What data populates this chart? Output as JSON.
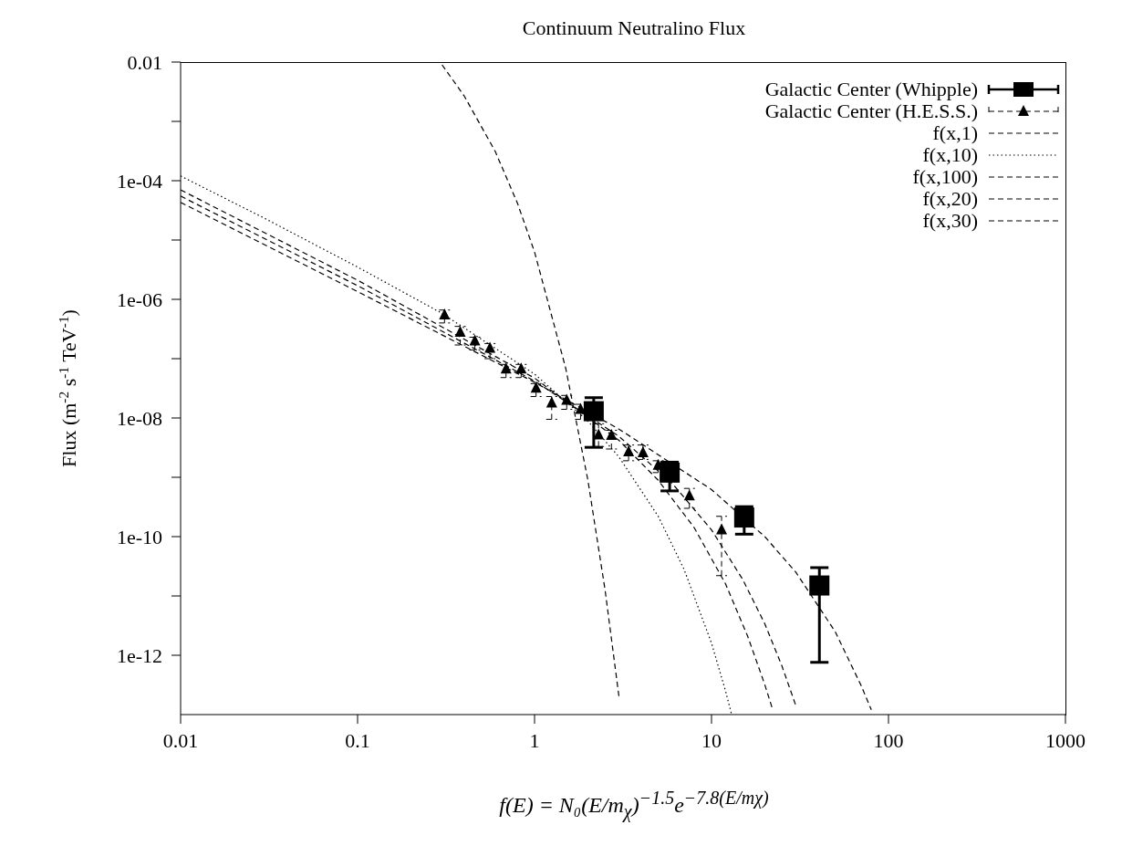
{
  "chart_data": {
    "type": "line",
    "title": "Continuum Neutralino Flux",
    "ylabel": "Flux (m$^{-2}$ s$^{-1}$ TeV$^{-1}$)",
    "annotations": [
      "f(E) = N₀(E/m$_{χ}$)$^{−1.5}$e$^{−7.8(E/mχ)}$"
    ],
    "log": "xy",
    "legend": "top right",
    "xlim": [
      0.01,
      1000
    ],
    "xticks": [
      0.01,
      0.1,
      1,
      10,
      100,
      1000
    ],
    "ylim": [
      1e-13,
      0.01
    ],
    "yticks": [
      0.01,
      {
        "value": 0.001,
        "label": null
      },
      {
        "value": 0.0001,
        "label": "1e-04"
      },
      {
        "value": 1e-05,
        "label": null
      },
      {
        "value": 1e-06,
        "label": "1e-06"
      },
      {
        "value": 1e-07,
        "label": null
      },
      {
        "value": 1e-08,
        "label": "1e-08"
      },
      {
        "value": 1e-09,
        "label": null
      },
      {
        "value": 1e-10,
        "label": "1e-10"
      },
      {
        "value": 1e-11,
        "label": null
      },
      {
        "value": 1e-12,
        "label": "1e-12"
      }
    ],
    "series": [
      {
        "name": "Galactic Center (Whipple)",
        "type": "scatter",
        "marker": "square",
        "color": "#000000",
        "x": [
          2.16,
          5.8,
          15.3,
          40.7
        ],
        "values": [
          1.3e-08,
          1.2e-09,
          2.1e-10,
          1.5e-11
        ],
        "errors": [
          [
            3.2e-09,
            2.2e-08
          ],
          [
            5.9e-10,
            1.8e-09
          ],
          [
            1.1e-10,
            3.2e-10
          ],
          [
            7.6e-13,
            3e-11
          ]
        ]
      },
      {
        "name": "Galactic Center (H.E.S.S.)",
        "type": "scatter",
        "marker": "triangle",
        "line_style": "dashed",
        "color": "#000000",
        "x": [
          0.31,
          0.38,
          0.46,
          0.56,
          0.69,
          0.84,
          1.02,
          1.25,
          1.52,
          1.82,
          2.3,
          2.72,
          3.4,
          4.1,
          5.0,
          7.5,
          11.4
        ],
        "values": [
          5.5e-07,
          2.8e-07,
          2e-07,
          1.5e-07,
          6.7e-08,
          6.7e-08,
          3.2e-08,
          1.8e-08,
          2e-08,
          1.4e-08,
          5.2e-09,
          5.1e-09,
          2.7e-09,
          2.6e-09,
          1.6e-09,
          4.9e-10,
          1.3e-10
        ],
        "errors": [
          [
            4e-07,
            6.6e-07
          ],
          [
            1.7e-07,
            3.5e-07
          ],
          [
            1.4e-07,
            2.3e-07
          ],
          [
            1e-07,
            1.8e-07
          ],
          [
            4.8e-08,
            8e-08
          ],
          [
            4.8e-08,
            8e-08
          ],
          [
            2.3e-08,
            3.8e-08
          ],
          [
            9.5e-09,
            2.3e-08
          ],
          [
            1.4e-08,
            2.4e-08
          ],
          [
            9.5e-09,
            1.7e-08
          ],
          [
            3.3e-09,
            8e-09
          ],
          [
            3e-09,
            6.2e-09
          ],
          [
            1.9e-09,
            3.5e-09
          ],
          [
            2e-09,
            3.5e-09
          ],
          [
            1.2e-09,
            1.9e-09
          ],
          [
            3e-10,
            6.5e-10
          ],
          [
            2.2e-11,
            2.2e-10
          ]
        ]
      },
      {
        "name": "f(x,1)",
        "line_style": "dashed",
        "color": "#000000",
        "x": [
          0.3,
          0.4,
          0.6,
          0.8,
          1,
          1.5,
          2,
          2.5,
          3
        ],
        "values": [
          0.009,
          0.0027,
          0.00031,
          4.2e-05,
          6.3e-06,
          6.9e-08,
          9.1e-10,
          1.3e-11,
          2e-13
        ]
      },
      {
        "name": "f(x,10)",
        "line_style": "dotted",
        "color": "#000000",
        "x": [
          0.01,
          0.03,
          0.1,
          0.3,
          1,
          2,
          3,
          5,
          7,
          10,
          12,
          13
        ],
        "values": [
          0.00012,
          2.3e-05,
          3.5e-06,
          5.8e-07,
          5.5e-08,
          8.9e-09,
          2.2e-09,
          2.2e-10,
          2.8e-11,
          1.6e-12,
          2.5e-13,
          1e-13
        ]
      },
      {
        "name": "f(x,100)",
        "line_style": "dashed",
        "color": "#000000",
        "x": [
          0.01,
          0.1,
          1,
          3,
          10,
          20,
          30,
          50,
          70,
          80
        ],
        "values": [
          4.3e-05,
          1.35e-06,
          4e-08,
          6.5e-09,
          6.2e-10,
          1e-10,
          2.5e-11,
          2.5e-12,
          3.1e-13,
          1.2e-13
        ]
      },
      {
        "name": "f(x,20)",
        "line_style": "dashed",
        "color": "#000000",
        "x": [
          0.01,
          0.1,
          1,
          3,
          5,
          8,
          12,
          16,
          20,
          22
        ],
        "values": [
          7e-05,
          2.1e-06,
          4.7e-08,
          4.2e-09,
          8.9e-10,
          1.4e-10,
          1.6e-11,
          2.1e-12,
          3.2e-13,
          1.3e-13
        ]
      },
      {
        "name": "f(x,30)",
        "line_style": "dashed",
        "color": "#000000",
        "x": [
          0.01,
          0.1,
          1,
          3,
          6,
          10,
          15,
          20,
          25,
          30
        ],
        "values": [
          5.5e-05,
          1.7e-06,
          4.2e-08,
          4.9e-09,
          7.9e-10,
          1.3e-10,
          1.9e-11,
          3.4e-12,
          6.6e-13,
          1.4e-13
        ]
      }
    ]
  }
}
